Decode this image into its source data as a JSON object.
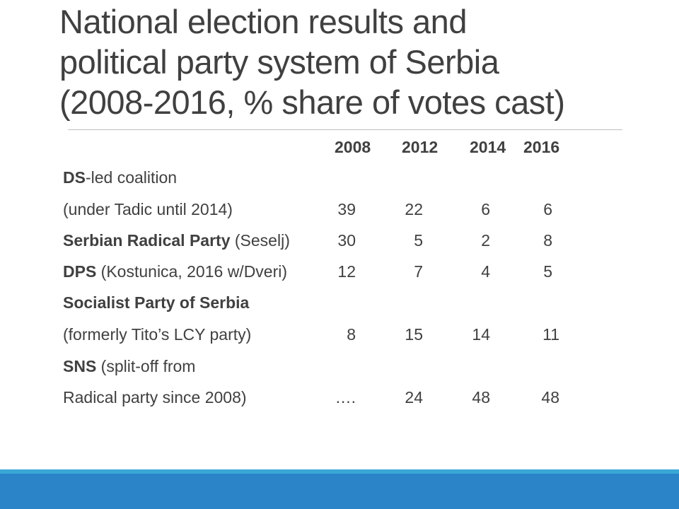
{
  "slide": {
    "title_lines": [
      "National election results  and",
      "political party system of Serbia",
      "(2008-2016, % share of votes cast)"
    ]
  },
  "table": {
    "columns": [
      "2008",
      "2012",
      "2014",
      "2016"
    ],
    "rows": [
      {
        "bold": "DS",
        "rest": "-led coalition",
        "values": [
          "",
          "",
          "",
          ""
        ]
      },
      {
        "bold": "",
        "rest": "(under Tadic until 2014)",
        "values": [
          "39",
          "22",
          "6",
          "6"
        ]
      },
      {
        "bold": "Serbian Radical Party",
        "rest": " (Seselj)",
        "values": [
          "30",
          "5",
          "2",
          "8"
        ]
      },
      {
        "bold": "DPS",
        "rest": " (Kostunica, 2016 w/Dveri)",
        "values": [
          "12",
          "7",
          "4",
          "5"
        ]
      },
      {
        "bold": "Socialist Party of Serbia",
        "rest": "",
        "values": [
          "",
          "",
          "",
          ""
        ]
      },
      {
        "bold": "",
        "rest": "(formerly Tito’s LCY party)",
        "values": [
          "8",
          "15",
          "14",
          "11"
        ]
      },
      {
        "bold": "SNS",
        "rest": " (split-off from",
        "values": [
          "",
          "",
          "",
          ""
        ]
      },
      {
        "bold": "",
        "rest": "Radical party since 2008)",
        "values": [
          "….",
          "24",
          "48",
          "48"
        ]
      }
    ]
  },
  "theme": {
    "band_light": "#3aa7d6",
    "band_dark": "#2b83c8",
    "rule": "#bfbfbf"
  }
}
